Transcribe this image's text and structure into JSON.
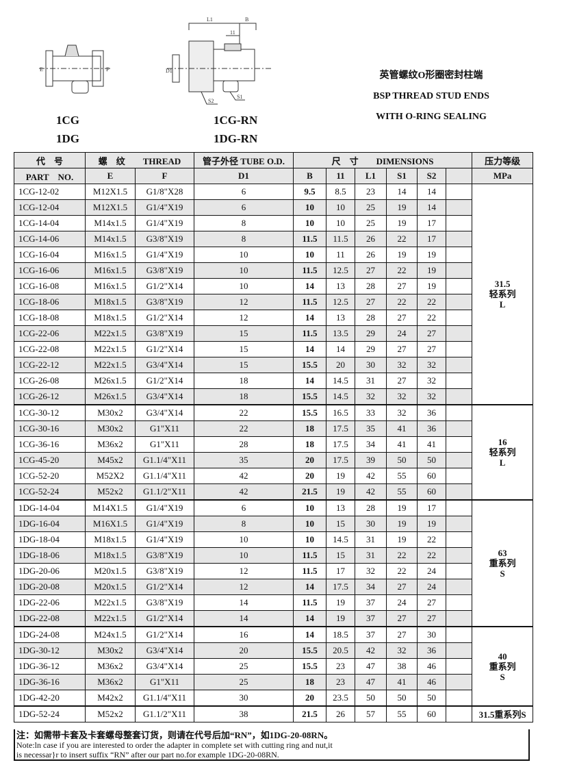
{
  "drawings": {
    "left_models": [
      "1CG",
      "1DG"
    ],
    "right_models": [
      "1CG-RN",
      "1DG-RN"
    ],
    "left_labels": {
      "e": "E",
      "f": "F"
    },
    "right_labels": {
      "l1": "L1",
      "b": "B",
      "l_small": "11",
      "d1": "D1",
      "s1": "S1",
      "s2": "S2"
    }
  },
  "title": {
    "cn": "英管螺纹O形圈密封柱端",
    "en1": "BSP THREAD STUD ENDS",
    "en2": "WITH O-RING SEALING"
  },
  "table": {
    "header1": {
      "code": "代　号",
      "thread": "螺　纹　　THREAD",
      "tube": "管子外径 TUBE O.D.",
      "dims": "尺　寸　　DIMENSIONS",
      "pressure": "压力等级"
    },
    "header2": {
      "part": "PART　NO.",
      "e": "E",
      "f": "F",
      "d1": "D1",
      "b": "B",
      "l": "11",
      "l1": "L1",
      "s1": "S1",
      "s2": "S2",
      "blank": "",
      "mpa": "MPa"
    },
    "groups": [
      {
        "pressure": [
          "31.5",
          "轻系列",
          "L"
        ],
        "rows": [
          [
            "1CG-12-02",
            "M12X1.5",
            "G1/8\"X28",
            "6",
            "9.5",
            "8.5",
            "23",
            "14",
            "14"
          ],
          [
            "1CG-12-04",
            "M12X1.5",
            "G1/4\"X19",
            "6",
            "10",
            "10",
            "25",
            "19",
            "14"
          ],
          [
            "1CG-14-04",
            "M14x1.5",
            "G1/4\"X19",
            "8",
            "10",
            "10",
            "25",
            "19",
            "17"
          ],
          [
            "1CG-14-06",
            "M14x1.5",
            "G3/8\"X19",
            "8",
            "11.5",
            "11.5",
            "26",
            "22",
            "17"
          ],
          [
            "1CG-16-04",
            "M16x1.5",
            "G1/4\"X19",
            "10",
            "10",
            "11",
            "26",
            "19",
            "19"
          ],
          [
            "1CG-16-06",
            "M16x1.5",
            "G3/8\"X19",
            "10",
            "11.5",
            "12.5",
            "27",
            "22",
            "19"
          ],
          [
            "1CG-16-08",
            "M16x1.5",
            "G1/2\"X14",
            "10",
            "14",
            "13",
            "28",
            "27",
            "19"
          ],
          [
            "1CG-18-06",
            "M18x1.5",
            "G3/8\"X19",
            "12",
            "11.5",
            "12.5",
            "27",
            "22",
            "22"
          ],
          [
            "1CG-18-08",
            "M18x1.5",
            "G1/2\"X14",
            "12",
            "14",
            "13",
            "28",
            "27",
            "22"
          ],
          [
            "1CG-22-06",
            "M22x1.5",
            "G3/8\"X19",
            "15",
            "11.5",
            "13.5",
            "29",
            "24",
            "27"
          ],
          [
            "1CG-22-08",
            "M22x1.5",
            "G1/2\"X14",
            "15",
            "14",
            "14",
            "29",
            "27",
            "27"
          ],
          [
            "1CG-22-12",
            "M22x1.5",
            "G3/4\"X14",
            "15",
            "15.5",
            "20",
            "30",
            "32",
            "32"
          ],
          [
            "1CG-26-08",
            "M26x1.5",
            "G1/2\"X14",
            "18",
            "14",
            "14.5",
            "31",
            "27",
            "32"
          ],
          [
            "1CG-26-12",
            "M26x1.5",
            "G3/4\"X14",
            "18",
            "15.5",
            "14.5",
            "32",
            "32",
            "32"
          ]
        ]
      },
      {
        "pressure": [
          "16",
          "轻系列",
          "L"
        ],
        "rows": [
          [
            "1CG-30-12",
            "M30x2",
            "G3/4\"X14",
            "22",
            "15.5",
            "16.5",
            "33",
            "32",
            "36"
          ],
          [
            "1CG-30-16",
            "M30x2",
            "G1\"X11",
            "22",
            "18",
            "17.5",
            "35",
            "41",
            "36"
          ],
          [
            "1CG-36-16",
            "M36x2",
            "G1\"X11",
            "28",
            "18",
            "17.5",
            "34",
            "41",
            "41"
          ],
          [
            "1CG-45-20",
            "M45x2",
            "G1.1/4\"X11",
            "35",
            "20",
            "17.5",
            "39",
            "50",
            "50"
          ],
          [
            "1CG-52-20",
            "M52X2",
            "G1.1/4\"X11",
            "42",
            "20",
            "19",
            "42",
            "55",
            "60"
          ],
          [
            "1CG-52-24",
            "M52x2",
            "G1.1/2\"X11",
            "42",
            "21.5",
            "19",
            "42",
            "55",
            "60"
          ]
        ]
      },
      {
        "pressure": [
          "63",
          "重系列",
          "S"
        ],
        "rows": [
          [
            "1DG-14-04",
            "M14X1.5",
            "G1/4\"X19",
            "6",
            "10",
            "13",
            "28",
            "19",
            "17"
          ],
          [
            "1DG-16-04",
            "M16X1.5",
            "G1/4\"X19",
            "8",
            "10",
            "15",
            "30",
            "19",
            "19"
          ],
          [
            "1DG-18-04",
            "M18x1.5",
            "G1/4\"X19",
            "10",
            "10",
            "14.5",
            "31",
            "19",
            "22"
          ],
          [
            "1DG-18-06",
            "M18x1.5",
            "G3/8\"X19",
            "10",
            "11.5",
            "15",
            "31",
            "22",
            "22"
          ],
          [
            "1DG-20-06",
            "M20x1.5",
            "G3/8\"X19",
            "12",
            "11.5",
            "17",
            "32",
            "22",
            "24"
          ],
          [
            "1DG-20-08",
            "M20x1.5",
            "G1/2\"X14",
            "12",
            "14",
            "17.5",
            "34",
            "27",
            "24"
          ],
          [
            "1DG-22-06",
            "M22x1.5",
            "G3/8\"X19",
            "14",
            "11.5",
            "19",
            "37",
            "24",
            "27"
          ],
          [
            "1DG-22-08",
            "M22x1.5",
            "G1/2\"X14",
            "14",
            "14",
            "19",
            "37",
            "27",
            "27"
          ]
        ]
      },
      {
        "pressure": [
          "40",
          "重系列",
          "S"
        ],
        "rows": [
          [
            "1DG-24-08",
            "M24x1.5",
            "G1/2\"X14",
            "16",
            "14",
            "18.5",
            "37",
            "27",
            "30"
          ],
          [
            "1DG-30-12",
            "M30x2",
            "G3/4\"X14",
            "20",
            "15.5",
            "20.5",
            "42",
            "32",
            "36"
          ],
          [
            "1DG-36-12",
            "M36x2",
            "G3/4\"X14",
            "25",
            "15.5",
            "23",
            "47",
            "38",
            "46"
          ],
          [
            "1DG-36-16",
            "M36x2",
            "G1\"X11",
            "25",
            "18",
            "23",
            "47",
            "41",
            "46"
          ],
          [
            "1DG-42-20",
            "M42x2",
            "G1.1/4\"X11",
            "30",
            "20",
            "23.5",
            "50",
            "50",
            "50"
          ]
        ]
      },
      {
        "pressure": [
          "31.5重系列S"
        ],
        "rows": [
          [
            "1DG-52-24",
            "M52x2",
            "G1.1/2\"X11",
            "38",
            "21.5",
            "26",
            "57",
            "55",
            "60"
          ]
        ]
      }
    ]
  },
  "note": {
    "cn": "注：如需带卡套及卡套螺母整套订货，则请在代号后加“RN”，如1DG-20-08RN。",
    "en1": "Note:ln case if you are interested to order the adapter in complete set with cutting ring and nut,it",
    "en2": "is necessar}r to insert suffix “RN”  after our part no.for example 1DG-20-08RN."
  }
}
